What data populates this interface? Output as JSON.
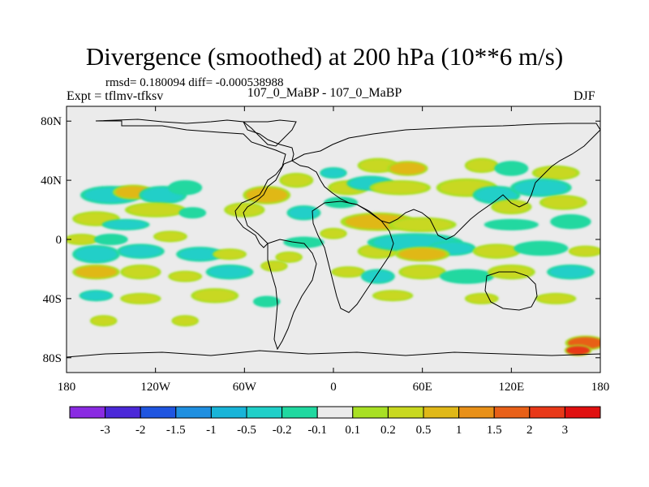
{
  "chart_data": {
    "type": "heatmap",
    "title": "Divergence (smoothed) at 200 hPa (10**6 m/s)",
    "stats": {
      "rmsd": "0.180094",
      "diff": "-0.000538988"
    },
    "stats_text": "rmsd= 0.180094 diff= -0.000538988",
    "experiment": "Expt = tflmv-tfksv",
    "period": "107_0_MaBP - 107_0_MaBP",
    "season": "DJF",
    "x_range": [
      -180,
      180
    ],
    "y_range": [
      -90,
      90
    ],
    "x_ticks": [
      {
        "value": -180,
        "label": "180"
      },
      {
        "value": -120,
        "label": "120W"
      },
      {
        "value": -60,
        "label": "60W"
      },
      {
        "value": 0,
        "label": "0"
      },
      {
        "value": 60,
        "label": "60E"
      },
      {
        "value": 120,
        "label": "120E"
      },
      {
        "value": 180,
        "label": "180"
      }
    ],
    "y_ticks": [
      {
        "value": 80,
        "label": "80N"
      },
      {
        "value": 40,
        "label": "40N"
      },
      {
        "value": 0,
        "label": "0"
      },
      {
        "value": -40,
        "label": "40S"
      },
      {
        "value": -80,
        "label": "80S"
      }
    ],
    "colorbar": {
      "labels": [
        "-3",
        "-2",
        "-1.5",
        "-1",
        "-0.5",
        "-0.2",
        "-0.1",
        "0.1",
        "0.2",
        "0.5",
        "1",
        "1.5",
        "2",
        "3"
      ],
      "colors": [
        "#8a2be2",
        "#4b28d8",
        "#1f55e0",
        "#1f8fe0",
        "#18b4d8",
        "#20cfc8",
        "#20d8a0",
        "#ebebeb",
        "#a8e024",
        "#c8d820",
        "#e0b818",
        "#e89018",
        "#e86018",
        "#e83818",
        "#e01010"
      ]
    },
    "features": [
      {
        "lon": -160,
        "lat": 14,
        "rx": 14,
        "ry": 4,
        "value": 0.3
      },
      {
        "lon": -150,
        "lat": 30,
        "rx": 18,
        "ry": 5,
        "value": -0.3
      },
      {
        "lon": -135,
        "lat": 32,
        "rx": 12,
        "ry": 4,
        "value": 0.6
      },
      {
        "lon": -115,
        "lat": 30,
        "rx": 14,
        "ry": 5,
        "value": -0.3
      },
      {
        "lon": -100,
        "lat": 35,
        "rx": 10,
        "ry": 4,
        "value": -0.15
      },
      {
        "lon": -120,
        "lat": 20,
        "rx": 18,
        "ry": 4,
        "value": 0.3
      },
      {
        "lon": -140,
        "lat": 10,
        "rx": 14,
        "ry": 3,
        "value": -0.3
      },
      {
        "lon": -95,
        "lat": 18,
        "rx": 8,
        "ry": 3,
        "value": -0.15
      },
      {
        "lon": -60,
        "lat": 20,
        "rx": 12,
        "ry": 4,
        "value": 0.3
      },
      {
        "lon": -45,
        "lat": 30,
        "rx": 14,
        "ry": 5,
        "value": 0.6
      },
      {
        "lon": -25,
        "lat": 40,
        "rx": 10,
        "ry": 4,
        "value": 0.3
      },
      {
        "lon": -20,
        "lat": 18,
        "rx": 10,
        "ry": 4,
        "value": -0.3
      },
      {
        "lon": 10,
        "lat": 35,
        "rx": 12,
        "ry": 4,
        "value": 0.3
      },
      {
        "lon": 0,
        "lat": 45,
        "rx": 8,
        "ry": 3,
        "value": -0.3
      },
      {
        "lon": 5,
        "lat": 25,
        "rx": 10,
        "ry": 3,
        "value": -0.15
      },
      {
        "lon": 30,
        "lat": 50,
        "rx": 12,
        "ry": 4,
        "value": 0.3
      },
      {
        "lon": 50,
        "lat": 48,
        "rx": 12,
        "ry": 4,
        "value": 0.6
      },
      {
        "lon": 25,
        "lat": 38,
        "rx": 14,
        "ry": 4,
        "value": -0.3
      },
      {
        "lon": 45,
        "lat": 35,
        "rx": 18,
        "ry": 4,
        "value": 0.3
      },
      {
        "lon": 90,
        "lat": 35,
        "rx": 18,
        "ry": 5,
        "value": 0.3
      },
      {
        "lon": 110,
        "lat": 30,
        "rx": 14,
        "ry": 5,
        "value": -0.3
      },
      {
        "lon": 100,
        "lat": 50,
        "rx": 10,
        "ry": 4,
        "value": 0.3
      },
      {
        "lon": 120,
        "lat": 48,
        "rx": 10,
        "ry": 4,
        "value": -0.15
      },
      {
        "lon": 150,
        "lat": 45,
        "rx": 14,
        "ry": 4,
        "value": 0.3
      },
      {
        "lon": 140,
        "lat": 35,
        "rx": 18,
        "ry": 5,
        "value": -0.3
      },
      {
        "lon": 155,
        "lat": 25,
        "rx": 14,
        "ry": 4,
        "value": 0.3
      },
      {
        "lon": 120,
        "lat": 22,
        "rx": 12,
        "ry": 4,
        "value": 0.3
      },
      {
        "lon": 160,
        "lat": 12,
        "rx": 12,
        "ry": 4,
        "value": -0.15
      },
      {
        "lon": 30,
        "lat": 12,
        "rx": 22,
        "ry": 5,
        "value": 0.6
      },
      {
        "lon": 60,
        "lat": 10,
        "rx": 20,
        "ry": 4,
        "value": 0.3
      },
      {
        "lon": 120,
        "lat": 10,
        "rx": 16,
        "ry": 3,
        "value": -0.15
      },
      {
        "lon": -170,
        "lat": 0,
        "rx": 10,
        "ry": 3,
        "value": 0.3
      },
      {
        "lon": -150,
        "lat": 0,
        "rx": 10,
        "ry": 3,
        "value": -0.15
      },
      {
        "lon": -110,
        "lat": 2,
        "rx": 10,
        "ry": 3,
        "value": 0.3
      },
      {
        "lon": -20,
        "lat": -2,
        "rx": 12,
        "ry": 3,
        "value": -0.15
      },
      {
        "lon": 0,
        "lat": 4,
        "rx": 8,
        "ry": 3,
        "value": 0.3
      },
      {
        "lon": -160,
        "lat": -10,
        "rx": 14,
        "ry": 5,
        "value": -0.3
      },
      {
        "lon": -130,
        "lat": -8,
        "rx": 14,
        "ry": 4,
        "value": -0.5
      },
      {
        "lon": -90,
        "lat": -10,
        "rx": 14,
        "ry": 4,
        "value": -0.3
      },
      {
        "lon": -70,
        "lat": -10,
        "rx": 10,
        "ry": 3,
        "value": 0.3
      },
      {
        "lon": -30,
        "lat": -12,
        "rx": 8,
        "ry": 3,
        "value": 0.3
      },
      {
        "lon": 30,
        "lat": -8,
        "rx": 12,
        "ry": 4,
        "value": 0.3
      },
      {
        "lon": 55,
        "lat": -2,
        "rx": 28,
        "ry": 5,
        "value": -0.5
      },
      {
        "lon": 80,
        "lat": -6,
        "rx": 14,
        "ry": 4,
        "value": -0.3
      },
      {
        "lon": 60,
        "lat": -10,
        "rx": 16,
        "ry": 4,
        "value": 0.6
      },
      {
        "lon": 110,
        "lat": -8,
        "rx": 14,
        "ry": 4,
        "value": 0.3
      },
      {
        "lon": 140,
        "lat": -6,
        "rx": 16,
        "ry": 4,
        "value": -0.15
      },
      {
        "lon": 170,
        "lat": -8,
        "rx": 10,
        "ry": 3,
        "value": 0.3
      },
      {
        "lon": -160,
        "lat": -22,
        "rx": 14,
        "ry": 4,
        "value": 0.6
      },
      {
        "lon": -130,
        "lat": -22,
        "rx": 12,
        "ry": 4,
        "value": 0.3
      },
      {
        "lon": -100,
        "lat": -25,
        "rx": 10,
        "ry": 3,
        "value": 0.3
      },
      {
        "lon": -70,
        "lat": -22,
        "rx": 14,
        "ry": 4,
        "value": -0.3
      },
      {
        "lon": -40,
        "lat": -18,
        "rx": 8,
        "ry": 3,
        "value": 0.3
      },
      {
        "lon": 10,
        "lat": -22,
        "rx": 10,
        "ry": 3,
        "value": 0.3
      },
      {
        "lon": 30,
        "lat": -25,
        "rx": 10,
        "ry": 4,
        "value": -0.3
      },
      {
        "lon": 60,
        "lat": -22,
        "rx": 14,
        "ry": 4,
        "value": 0.3
      },
      {
        "lon": 90,
        "lat": -25,
        "rx": 16,
        "ry": 4,
        "value": -0.15
      },
      {
        "lon": 120,
        "lat": -22,
        "rx": 14,
        "ry": 4,
        "value": 0.3
      },
      {
        "lon": 160,
        "lat": -22,
        "rx": 14,
        "ry": 4,
        "value": -0.3
      },
      {
        "lon": -160,
        "lat": -38,
        "rx": 10,
        "ry": 3,
        "value": -0.3
      },
      {
        "lon": -130,
        "lat": -40,
        "rx": 12,
        "ry": 3,
        "value": 0.3
      },
      {
        "lon": -80,
        "lat": -38,
        "rx": 14,
        "ry": 4,
        "value": 0.3
      },
      {
        "lon": -45,
        "lat": -42,
        "rx": 8,
        "ry": 3,
        "value": -0.15
      },
      {
        "lon": 40,
        "lat": -38,
        "rx": 12,
        "ry": 3,
        "value": 0.3
      },
      {
        "lon": 100,
        "lat": -40,
        "rx": 10,
        "ry": 3,
        "value": 0.3
      },
      {
        "lon": 150,
        "lat": -40,
        "rx": 12,
        "ry": 3,
        "value": 0.3
      },
      {
        "lon": -155,
        "lat": -55,
        "rx": 8,
        "ry": 3,
        "value": 0.3
      },
      {
        "lon": -100,
        "lat": -55,
        "rx": 8,
        "ry": 3,
        "value": 0.3
      },
      {
        "lon": 170,
        "lat": -70,
        "rx": 12,
        "ry": 4,
        "value": 1.5
      },
      {
        "lon": 165,
        "lat": -75,
        "rx": 8,
        "ry": 3,
        "value": 2.5
      }
    ]
  }
}
